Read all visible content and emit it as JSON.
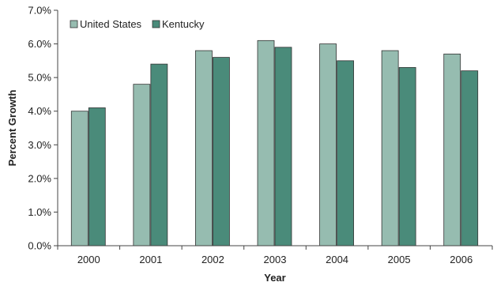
{
  "chart_data": {
    "type": "bar",
    "categories": [
      "2000",
      "2001",
      "2002",
      "2003",
      "2004",
      "2005",
      "2006"
    ],
    "series": [
      {
        "name": "United States",
        "values": [
          4.0,
          4.8,
          5.8,
          6.1,
          6.0,
          5.8,
          5.7
        ],
        "color": "#96bcb0"
      },
      {
        "name": "Kentucky",
        "values": [
          4.1,
          5.4,
          5.6,
          5.9,
          5.5,
          5.3,
          5.2
        ],
        "color": "#4a8b7a"
      }
    ],
    "xlabel": "Year",
    "ylabel": "Percent Growth",
    "ylim": [
      0,
      7
    ],
    "yticks": [
      {
        "value": 0,
        "label": "0.0%"
      },
      {
        "value": 1,
        "label": "1.0%"
      },
      {
        "value": 2,
        "label": "2.0%"
      },
      {
        "value": 3,
        "label": "3.0%"
      },
      {
        "value": 4,
        "label": "4.0%"
      },
      {
        "value": 5,
        "label": "5.0%"
      },
      {
        "value": 6,
        "label": "6.0%"
      },
      {
        "value": 7,
        "label": "7.0%"
      }
    ],
    "grid": false,
    "legend_position": "top-left"
  }
}
